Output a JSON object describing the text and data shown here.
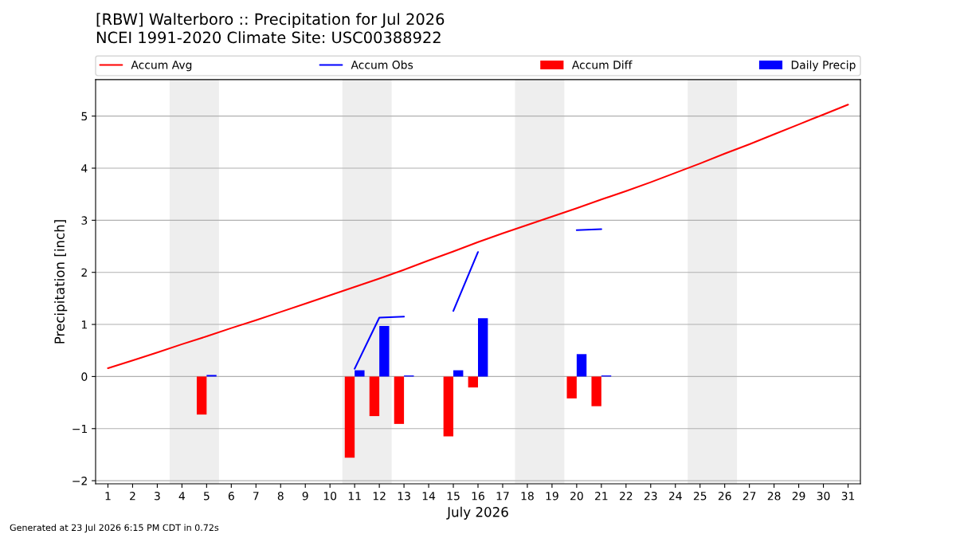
{
  "chart_data": {
    "type": "bar",
    "title": "[RBW] Walterboro :: Precipitation for Jul 2026",
    "subtitle": "NCEI 1991-2020 Climate Site: USC00388922",
    "xlabel": "July 2026",
    "ylabel": "Precipitation [inch]",
    "annotations": [
      "Generated at 23 Jul 2026 6:15 PM CDT in 0.72s"
    ],
    "x": [
      1,
      2,
      3,
      4,
      5,
      6,
      7,
      8,
      9,
      10,
      11,
      12,
      13,
      14,
      15,
      16,
      17,
      18,
      19,
      20,
      21,
      22,
      23,
      24,
      25,
      26,
      27,
      28,
      29,
      30,
      31
    ],
    "series": [
      {
        "name": "Accum Avg",
        "type": "line",
        "color": "#ff0000",
        "values": [
          0.16,
          0.31,
          0.46,
          0.62,
          0.77,
          0.93,
          1.08,
          1.24,
          1.4,
          1.56,
          1.72,
          1.88,
          2.05,
          2.23,
          2.4,
          2.58,
          2.75,
          2.91,
          3.07,
          3.23,
          3.4,
          3.56,
          3.73,
          3.91,
          4.09,
          4.28,
          4.46,
          4.65,
          4.84,
          5.03,
          5.22
        ]
      },
      {
        "name": "Accum Obs",
        "type": "line",
        "color": "#0000ff",
        "values": [
          null,
          null,
          null,
          null,
          null,
          null,
          null,
          null,
          null,
          null,
          0.15,
          1.13,
          1.15,
          null,
          1.26,
          2.39,
          null,
          null,
          null,
          2.81,
          2.83,
          null,
          null,
          null,
          null,
          null,
          null,
          null,
          null,
          null,
          null
        ]
      },
      {
        "name": "Accum Diff",
        "color": "#ff0000",
        "values": [
          null,
          null,
          null,
          null,
          -0.73,
          null,
          null,
          null,
          null,
          null,
          -1.56,
          -0.76,
          -0.91,
          null,
          -1.15,
          -0.21,
          null,
          null,
          null,
          -0.42,
          -0.57,
          null,
          null,
          null,
          null,
          null,
          null,
          null,
          null,
          null,
          null
        ]
      },
      {
        "name": "Daily Precip",
        "color": "#0000ff",
        "values": [
          null,
          null,
          null,
          null,
          0.03,
          null,
          null,
          null,
          null,
          null,
          0.12,
          0.97,
          0.02,
          null,
          0.12,
          1.12,
          null,
          null,
          null,
          0.43,
          0.02,
          null,
          null,
          null,
          null,
          null,
          null,
          null,
          null,
          null,
          null
        ]
      }
    ],
    "xlim": [
      0.5,
      31.5
    ],
    "ylim": [
      -2.06,
      5.7
    ],
    "xticks": [
      1,
      2,
      3,
      4,
      5,
      6,
      7,
      8,
      9,
      10,
      11,
      12,
      13,
      14,
      15,
      16,
      17,
      18,
      19,
      20,
      21,
      22,
      23,
      24,
      25,
      26,
      27,
      28,
      29,
      30,
      31
    ],
    "yticks": [
      {
        "value": -2,
        "label": "−2"
      },
      {
        "value": -1,
        "label": "−1"
      },
      0,
      1,
      2,
      3,
      4,
      5
    ],
    "bands": [
      {
        "axis": "x",
        "from": 3.5,
        "to": 5.5,
        "color": "#eeeeee"
      },
      {
        "axis": "x",
        "from": 10.5,
        "to": 12.5,
        "color": "#eeeeee"
      },
      {
        "axis": "x",
        "from": 17.5,
        "to": 19.5,
        "color": "#eeeeee"
      },
      {
        "axis": "x",
        "from": 24.5,
        "to": 26.5,
        "color": "#eeeeee"
      }
    ],
    "grid": "y",
    "legend": "top"
  }
}
